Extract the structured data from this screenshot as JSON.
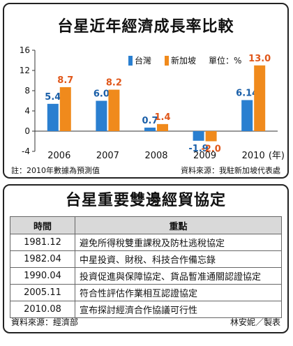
{
  "chart_data": {
    "type": "bar",
    "title": "台星近年經濟成長率比較",
    "categories": [
      "2006",
      "2007",
      "2008",
      "2009",
      "2010"
    ],
    "x_unit": "(年)",
    "series": [
      {
        "name": "台灣",
        "color": "#2a7fd0",
        "values": [
          5.4,
          6.0,
          0.7,
          -1.9,
          6.14
        ],
        "labels": [
          "5.4",
          "6.0",
          "0.7",
          "-1.9",
          "6.14"
        ],
        "label_color": "#1a5fa8"
      },
      {
        "name": "新加坡",
        "color": "#f08a1c",
        "values": [
          8.7,
          8.2,
          1.4,
          -2.0,
          13.0
        ],
        "labels": [
          "8.7",
          "8.2",
          "1.4",
          "-2.0",
          "13.0"
        ],
        "label_color": "#e0571a"
      }
    ],
    "unit_label": "單位：%",
    "ylim": [
      -4,
      16
    ],
    "yticks": [
      "16",
      "12",
      "8",
      "4",
      "0",
      "-4"
    ],
    "grid": false,
    "legend": "top-right",
    "note": "註：2010年數據為預測值",
    "source": "資料來源：我駐新加坡代表處"
  },
  "table": {
    "title": "台星重要雙邊經貿協定",
    "headers": [
      "時間",
      "重點"
    ],
    "rows": [
      {
        "date": "1981.12",
        "point": "避免所得稅雙重課稅及防杜逃稅協定"
      },
      {
        "date": "1982.04",
        "point": "中星投資、財稅、科技合作備忘錄"
      },
      {
        "date": "1990.04",
        "point": "投資促進與保障協定、貨品暫准通關認證協定"
      },
      {
        "date": "2005.11",
        "point": "符合性評估作業相互認證協定"
      },
      {
        "date": "2010.08",
        "point": "宣布探討經濟合作協議可行性"
      }
    ],
    "source": "資料來源：經濟部",
    "credit": "林安妮／製表"
  }
}
